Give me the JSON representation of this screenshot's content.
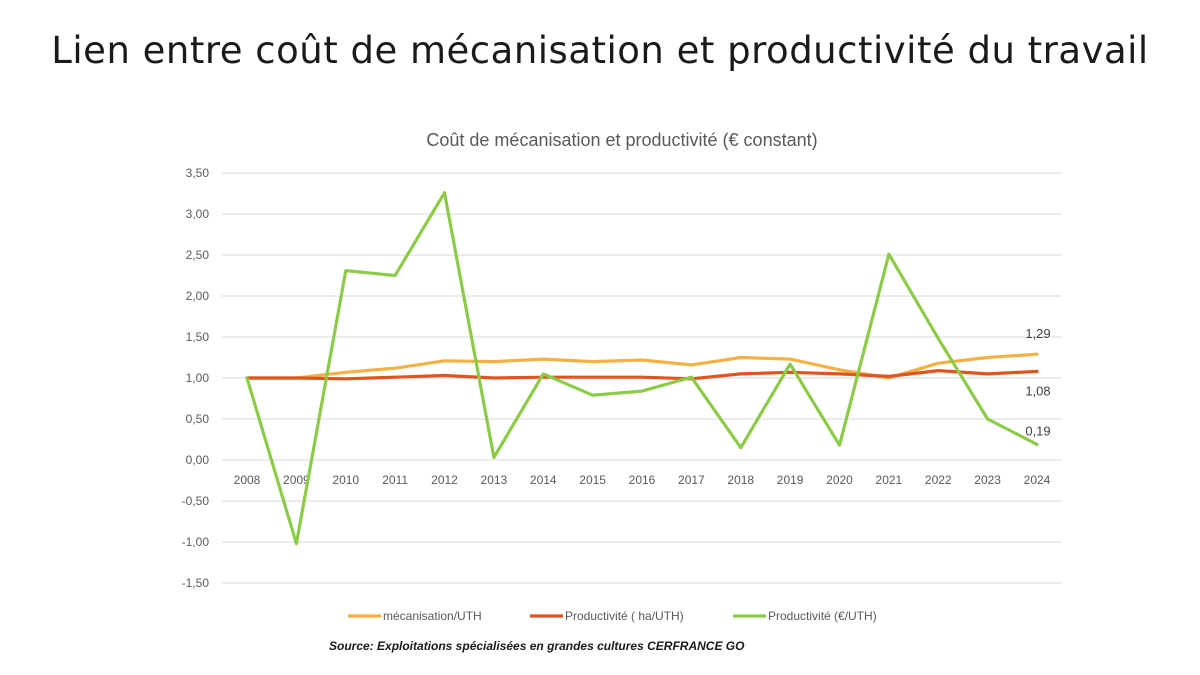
{
  "page": {
    "title": "Lien entre coût de mécanisation et productivité du travail"
  },
  "chart_data": {
    "type": "line",
    "title": "Coût de mécanisation et productivité (€ constant)",
    "xlabel": "",
    "ylabel": "",
    "ylim": [
      -1.5,
      3.5
    ],
    "ytick_step": 0.5,
    "y_tick_labels": [
      "3,50",
      "3,00",
      "2,50",
      "2,00",
      "1,50",
      "1,00",
      "0,50",
      "0,00",
      "-0,50",
      "-1,00",
      "-1,50"
    ],
    "grid": true,
    "legend_position": "bottom",
    "categories": [
      "2008",
      "2009",
      "2010",
      "2011",
      "2012",
      "2013",
      "2014",
      "2015",
      "2016",
      "2017",
      "2018",
      "2019",
      "2020",
      "2021",
      "2022",
      "2023",
      "2024"
    ],
    "series": [
      {
        "name": "mécanisation/UTH",
        "color": "#F4B043",
        "values": [
          1.0,
          1.0,
          1.07,
          1.12,
          1.21,
          1.2,
          1.23,
          1.2,
          1.22,
          1.16,
          1.25,
          1.23,
          1.1,
          1.0,
          1.18,
          1.25,
          1.29
        ],
        "end_label": "1,29"
      },
      {
        "name": "Productivité ( ha/UTH)",
        "color": "#E0541F",
        "values": [
          1.0,
          1.0,
          0.99,
          1.01,
          1.03,
          1.0,
          1.01,
          1.01,
          1.01,
          0.99,
          1.05,
          1.07,
          1.05,
          1.02,
          1.09,
          1.05,
          1.08
        ],
        "end_label": "1,08"
      },
      {
        "name": "Productivité (€/UTH)",
        "color": "#8CCB47",
        "values": [
          1.0,
          -1.02,
          2.31,
          2.25,
          3.26,
          0.03,
          1.05,
          0.79,
          0.84,
          1.01,
          0.15,
          1.17,
          0.18,
          2.51,
          1.48,
          0.5,
          0.19
        ],
        "end_label": "0,19"
      }
    ],
    "source": "Source: Exploitations spécialisées en grandes cultures CERFRANCE GO"
  }
}
